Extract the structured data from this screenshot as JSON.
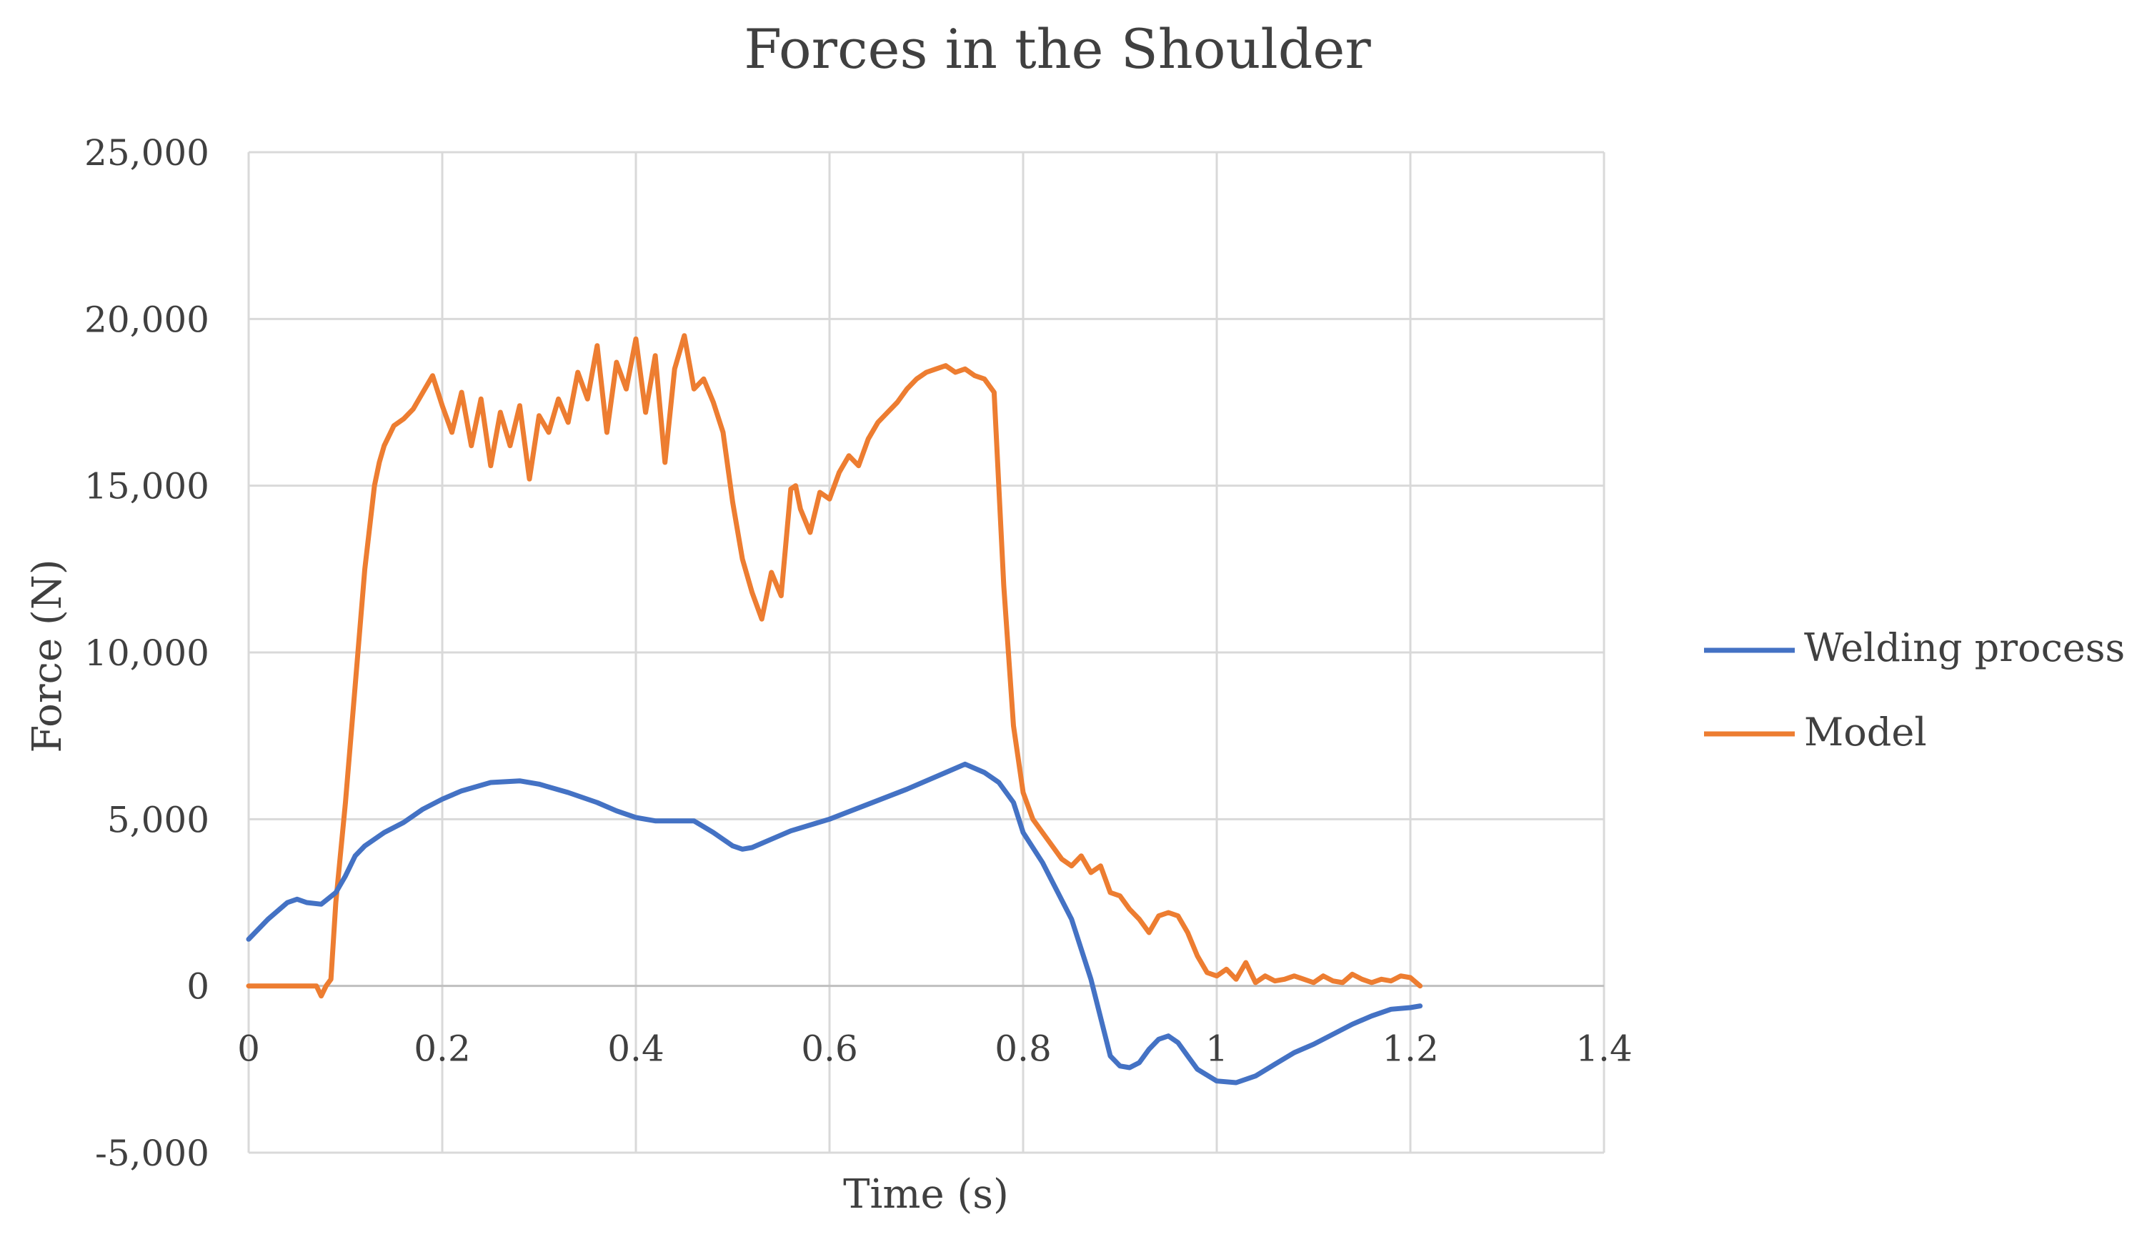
{
  "chart_data": {
    "type": "line",
    "title": "Forces in the Shoulder",
    "xlabel": "Time (s)",
    "ylabel": "Force (N)",
    "xlim": [
      0,
      1.4
    ],
    "ylim": [
      -5000,
      25000
    ],
    "x_ticks": [
      0,
      0.2,
      0.4,
      0.6,
      0.8,
      1,
      1.2,
      1.4
    ],
    "x_tick_labels": [
      "0",
      "0.2",
      "0.4",
      "0.6",
      "0.8",
      "1",
      "1.2",
      "1.4"
    ],
    "y_ticks": [
      -5000,
      0,
      5000,
      10000,
      15000,
      20000,
      25000
    ],
    "y_tick_labels": [
      "-5,000",
      "0",
      "5,000",
      "10,000",
      "15,000",
      "20,000",
      "25,000"
    ],
    "grid": true,
    "legend_position": "right",
    "series": [
      {
        "name": "Welding process",
        "color": "#4472C4",
        "x": [
          0,
          0.02,
          0.04,
          0.05,
          0.06,
          0.075,
          0.09,
          0.1,
          0.11,
          0.12,
          0.14,
          0.16,
          0.18,
          0.2,
          0.22,
          0.25,
          0.28,
          0.3,
          0.33,
          0.36,
          0.38,
          0.4,
          0.42,
          0.44,
          0.46,
          0.48,
          0.5,
          0.51,
          0.52,
          0.54,
          0.56,
          0.6,
          0.64,
          0.68,
          0.72,
          0.74,
          0.76,
          0.775,
          0.79,
          0.8,
          0.82,
          0.85,
          0.87,
          0.89,
          0.9,
          0.91,
          0.92,
          0.93,
          0.94,
          0.95,
          0.96,
          0.97,
          0.98,
          1,
          1.02,
          1.04,
          1.06,
          1.08,
          1.1,
          1.12,
          1.14,
          1.16,
          1.18,
          1.2,
          1.21
        ],
        "y": [
          1400,
          2000,
          2500,
          2600,
          2500,
          2450,
          2800,
          3300,
          3900,
          4200,
          4600,
          4900,
          5300,
          5600,
          5850,
          6100,
          6150,
          6050,
          5800,
          5500,
          5250,
          5050,
          4950,
          4950,
          4950,
          4600,
          4200,
          4100,
          4150,
          4400,
          4650,
          5000,
          5450,
          5900,
          6400,
          6650,
          6400,
          6100,
          5500,
          4600,
          3700,
          2000,
          200,
          -2100,
          -2400,
          -2450,
          -2300,
          -1900,
          -1600,
          -1500,
          -1700,
          -2100,
          -2500,
          -2850,
          -2900,
          -2700,
          -2350,
          -2000,
          -1750,
          -1450,
          -1150,
          -900,
          -700,
          -650,
          -600
        ]
      },
      {
        "name": "Model",
        "color": "#ED7D31",
        "x": [
          0,
          0.07,
          0.075,
          0.08,
          0.085,
          0.09,
          0.1,
          0.11,
          0.12,
          0.13,
          0.135,
          0.14,
          0.15,
          0.16,
          0.17,
          0.18,
          0.19,
          0.2,
          0.21,
          0.22,
          0.23,
          0.24,
          0.25,
          0.26,
          0.27,
          0.28,
          0.29,
          0.3,
          0.31,
          0.32,
          0.33,
          0.34,
          0.35,
          0.36,
          0.37,
          0.38,
          0.39,
          0.4,
          0.41,
          0.42,
          0.43,
          0.44,
          0.45,
          0.46,
          0.47,
          0.48,
          0.49,
          0.5,
          0.51,
          0.52,
          0.53,
          0.54,
          0.55,
          0.56,
          0.565,
          0.57,
          0.58,
          0.59,
          0.6,
          0.61,
          0.62,
          0.63,
          0.64,
          0.65,
          0.66,
          0.67,
          0.68,
          0.69,
          0.7,
          0.71,
          0.72,
          0.73,
          0.74,
          0.75,
          0.76,
          0.77,
          0.78,
          0.79,
          0.8,
          0.81,
          0.82,
          0.83,
          0.84,
          0.85,
          0.86,
          0.87,
          0.88,
          0.89,
          0.9,
          0.91,
          0.92,
          0.93,
          0.94,
          0.95,
          0.96,
          0.97,
          0.98,
          0.99,
          1,
          1.01,
          1.02,
          1.03,
          1.04,
          1.05,
          1.06,
          1.07,
          1.08,
          1.09,
          1.1,
          1.11,
          1.12,
          1.13,
          1.14,
          1.15,
          1.16,
          1.17,
          1.18,
          1.19,
          1.2,
          1.21
        ],
        "y": [
          0,
          0,
          -300,
          0,
          200,
          2500,
          5500,
          9000,
          12500,
          15000,
          15700,
          16200,
          16800,
          17000,
          17300,
          17800,
          18300,
          17400,
          16600,
          17800,
          16200,
          17600,
          15600,
          17200,
          16200,
          17400,
          15200,
          17100,
          16600,
          17600,
          16900,
          18400,
          17600,
          19200,
          16600,
          18700,
          17900,
          19400,
          17200,
          18900,
          15700,
          18500,
          19500,
          17900,
          18200,
          17500,
          16600,
          14500,
          12800,
          11800,
          11000,
          12400,
          11700,
          14900,
          15000,
          14300,
          13600,
          14800,
          14600,
          15400,
          15900,
          15600,
          16400,
          16900,
          17200,
          17500,
          17900,
          18200,
          18400,
          18500,
          18600,
          18400,
          18500,
          18300,
          18200,
          17800,
          12000,
          7800,
          5800,
          5000,
          4600,
          4200,
          3800,
          3600,
          3900,
          3400,
          3600,
          2800,
          2700,
          2300,
          2000,
          1600,
          2100,
          2200,
          2100,
          1600,
          900,
          400,
          300,
          500,
          200,
          700,
          100,
          300,
          150,
          200,
          300,
          200,
          100,
          300,
          150,
          100,
          350,
          200,
          100,
          200,
          150,
          300,
          250,
          0
        ]
      }
    ]
  }
}
